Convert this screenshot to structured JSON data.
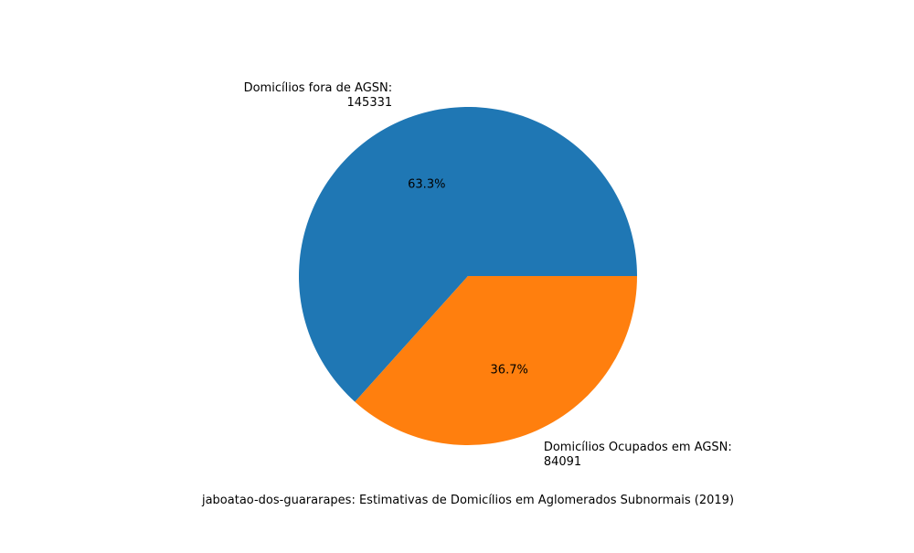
{
  "chart_data": {
    "type": "pie",
    "title": "",
    "caption": "jaboatao-dos-guararapes: Estimativas de Domicílios em Aglomerados Subnormais (2019)",
    "slices": [
      {
        "label_line1": "Domicílios fora de AGSN:",
        "label_line2": "145331",
        "value": 145331,
        "percent_label": "63.3%",
        "color": "#1f77b4"
      },
      {
        "label_line1": "Domicílios Ocupados em AGSN:",
        "label_line2": "84091",
        "value": 84091,
        "percent_label": "36.7%",
        "color": "#ff7f0e"
      }
    ],
    "start_angle_deg": 0,
    "direction": "counterclockwise"
  }
}
